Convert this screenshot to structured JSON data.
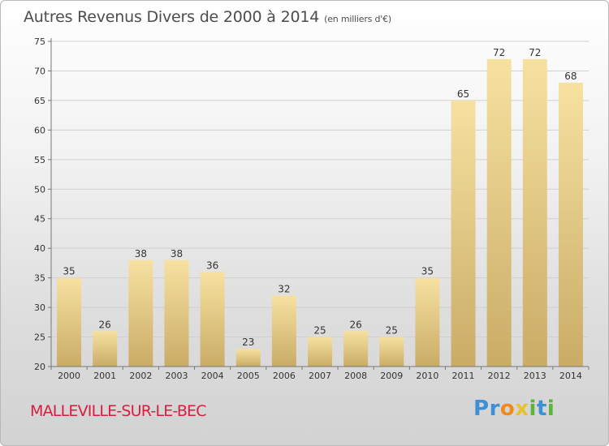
{
  "header": {
    "title": "Autres Revenus Divers de 2000 à 2014",
    "unit": "(en milliers d'€)"
  },
  "footer": {
    "commune": "MALLEVILLE-SUR-LE-BEC",
    "logo_letters": [
      {
        "char": "P",
        "color": "#3d8fd6"
      },
      {
        "char": "r",
        "color": "#3d8fd6"
      },
      {
        "char": "o",
        "color": "#f08a1c"
      },
      {
        "char": "x",
        "color": "#e8c22a"
      },
      {
        "char": "i",
        "color": "#5bb53c"
      },
      {
        "char": "t",
        "color": "#3d8fd6"
      },
      {
        "char": "i",
        "color": "#5bb53c"
      }
    ]
  },
  "colors": {
    "bar_top": "#f7e1a1",
    "bar_bottom": "#c9ac66",
    "axis": "#777777",
    "grid": "#d0d0d0",
    "commune": "#d81e3e"
  },
  "chart_data": {
    "type": "bar",
    "categories": [
      "2000",
      "2001",
      "2002",
      "2003",
      "2004",
      "2005",
      "2006",
      "2007",
      "2008",
      "2009",
      "2010",
      "2011",
      "2012",
      "2013",
      "2014"
    ],
    "values": [
      35,
      26,
      38,
      38,
      36,
      23,
      32,
      25,
      26,
      25,
      35,
      65,
      72,
      72,
      68
    ],
    "ylim": [
      20,
      75
    ],
    "yticks": [
      20,
      25,
      30,
      35,
      40,
      45,
      50,
      55,
      60,
      65,
      70,
      75
    ],
    "grid": true,
    "data_labels": true
  }
}
